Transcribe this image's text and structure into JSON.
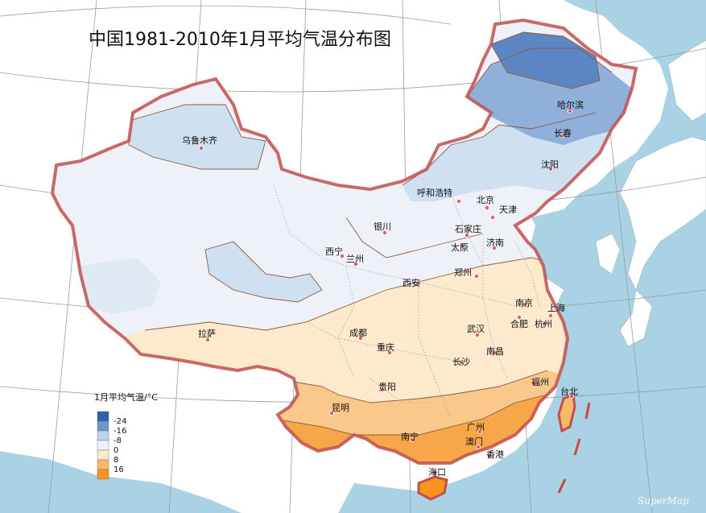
{
  "title": "中国1981-2010年1月平均气温分布图",
  "legend": {
    "title": "1月平均气温/°C",
    "bins": [
      {
        "label": "-24",
        "color": "#2e62ad"
      },
      {
        "label": "-16",
        "color": "#6f97cf"
      },
      {
        "label": "-8",
        "color": "#b8d2ea"
      },
      {
        "label": "0",
        "color": "#eef2f8"
      },
      {
        "label": "8",
        "color": "#fde9cc"
      },
      {
        "label": "16",
        "color": "#f9b96b"
      },
      {
        "label": "",
        "color": "#f7931e"
      }
    ]
  },
  "cities": [
    {
      "name": "哈尔滨"
    },
    {
      "name": "长春"
    },
    {
      "name": "沈阳"
    },
    {
      "name": "乌鲁木齐"
    },
    {
      "name": "呼和浩特"
    },
    {
      "name": "北京"
    },
    {
      "name": "天津"
    },
    {
      "name": "石家庄"
    },
    {
      "name": "银川"
    },
    {
      "name": "太原"
    },
    {
      "name": "济南"
    },
    {
      "name": "西宁"
    },
    {
      "name": "兰州"
    },
    {
      "name": "郑州"
    },
    {
      "name": "西安"
    },
    {
      "name": "南京"
    },
    {
      "name": "上海"
    },
    {
      "name": "合肥"
    },
    {
      "name": "杭州"
    },
    {
      "name": "拉萨"
    },
    {
      "name": "成都"
    },
    {
      "name": "武汉"
    },
    {
      "name": "重庆"
    },
    {
      "name": "长沙"
    },
    {
      "name": "南昌"
    },
    {
      "name": "贵阳"
    },
    {
      "name": "福州"
    },
    {
      "name": "台北"
    },
    {
      "name": "昆明"
    },
    {
      "name": "南宁"
    },
    {
      "name": "广州"
    },
    {
      "name": "澳门"
    },
    {
      "name": "香港"
    },
    {
      "name": "海口"
    }
  ],
  "watermark": "SuperMap",
  "colors": {
    "sea": "#a9d3e5",
    "land_outside": "#ffffff",
    "border": "#c0504d",
    "contour": "#8b5a3c",
    "city_dot": "#e35b6b"
  }
}
